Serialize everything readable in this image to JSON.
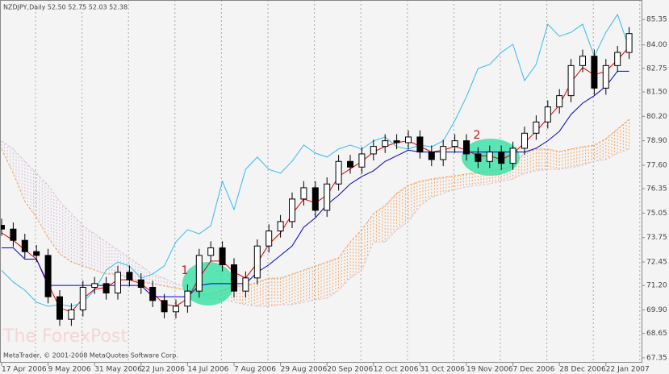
{
  "chart_data": {
    "type": "candlestick",
    "header": "NZDJPY,Daily  52.50 52.75 52.03 52.38",
    "footer": "MetaTrader, © 2001-2008 MetaQuotes Software Corp.",
    "watermark": "The ForexPost",
    "annotations": [
      "1",
      "2"
    ],
    "background": "#f4f4f4",
    "grid": true,
    "up_color": "#ffffff",
    "down_color": "#000000",
    "x": [
      0,
      4,
      8,
      12,
      16,
      20,
      24,
      28,
      32,
      36,
      40,
      44,
      48,
      52,
      56,
      60,
      64,
      68,
      72,
      76,
      80,
      84,
      88,
      92,
      96,
      100,
      104,
      108,
      112,
      116,
      120,
      124,
      128,
      132,
      136,
      140,
      144,
      148,
      152,
      156,
      160,
      164,
      168,
      172,
      176,
      180,
      184,
      188,
      192,
      196,
      200,
      204,
      208,
      212,
      216
    ],
    "open": [
      74.4,
      74.2,
      73.6,
      73.0,
      72.8,
      70.6,
      69.4,
      69.9,
      71.1,
      71.3,
      70.8,
      71.9,
      71.5,
      71.1,
      70.4,
      69.8,
      70.1,
      70.9,
      72.8,
      73.2,
      72.3,
      70.9,
      71.6,
      73.3,
      74.1,
      74.6,
      75.8,
      76.4,
      75.2,
      76.6,
      77.8,
      77.5,
      78.2,
      78.6,
      78.9,
      78.8,
      79.1,
      78.3,
      77.9,
      78.6,
      78.9,
      78.2,
      77.8,
      78.3,
      77.7,
      78.5,
      79.3,
      79.9,
      80.7,
      81.3,
      82.9,
      83.4,
      81.7,
      82.9,
      83.6
    ],
    "high": [
      74.75,
      74.55,
      73.95,
      73.35,
      73.15,
      70.95,
      70.25,
      71.45,
      71.65,
      71.65,
      72.25,
      72.25,
      71.85,
      71.45,
      70.75,
      70.45,
      71.25,
      73.15,
      73.55,
      73.55,
      72.65,
      71.95,
      73.65,
      74.45,
      74.95,
      76.15,
      76.75,
      76.75,
      76.95,
      78.15,
      78.15,
      78.55,
      78.95,
      79.25,
      79.25,
      79.45,
      79.45,
      78.65,
      78.95,
      79.25,
      79.25,
      78.55,
      78.65,
      78.65,
      78.85,
      79.65,
      80.25,
      81.05,
      81.65,
      83.25,
      83.75,
      83.75,
      83.25,
      83.95,
      84.95
    ],
    "low": [
      73.85,
      73.25,
      72.65,
      72.45,
      70.25,
      69.05,
      69.05,
      69.55,
      70.75,
      70.45,
      70.45,
      71.15,
      70.75,
      70.05,
      69.45,
      69.45,
      69.75,
      70.55,
      72.45,
      71.95,
      70.55,
      70.55,
      71.25,
      72.95,
      73.75,
      74.25,
      75.45,
      74.85,
      74.85,
      76.25,
      77.15,
      77.15,
      77.85,
      78.25,
      78.45,
      78.45,
      77.95,
      77.55,
      77.55,
      78.25,
      77.85,
      77.45,
      77.45,
      77.35,
      77.35,
      78.15,
      78.95,
      79.55,
      80.35,
      80.95,
      82.55,
      81.35,
      81.35,
      82.55,
      83.25
    ],
    "close": [
      74.2,
      73.6,
      73.0,
      72.8,
      70.6,
      69.4,
      69.9,
      71.1,
      71.3,
      70.8,
      71.9,
      71.5,
      71.1,
      70.4,
      69.8,
      70.1,
      70.9,
      72.8,
      73.2,
      72.3,
      70.9,
      71.6,
      73.3,
      74.1,
      74.6,
      75.8,
      76.4,
      75.2,
      76.6,
      77.8,
      77.5,
      78.2,
      78.6,
      78.9,
      78.8,
      79.1,
      78.3,
      77.9,
      78.6,
      78.9,
      78.2,
      77.8,
      78.3,
      77.7,
      78.5,
      79.3,
      79.9,
      80.7,
      81.3,
      82.9,
      83.4,
      81.7,
      82.9,
      83.6,
      84.6
    ],
    "series": [
      {
        "color": "#e00000",
        "values": [
          74.0,
          73.6,
          73.1,
          72.6,
          71.3,
          70.0,
          69.8,
          70.5,
          71.0,
          71.1,
          71.5,
          71.5,
          71.3,
          70.8,
          70.2,
          70.1,
          70.5,
          71.6,
          72.5,
          72.5,
          71.9,
          71.6,
          72.4,
          73.4,
          74.0,
          75.0,
          75.8,
          75.6,
          76.0,
          77.0,
          77.4,
          77.8,
          78.3,
          78.6,
          78.8,
          78.9,
          78.6,
          78.3,
          78.4,
          78.6,
          78.4,
          78.1,
          78.1,
          77.9,
          78.2,
          78.8,
          79.4,
          80.1,
          80.8,
          82.0,
          82.8,
          82.4,
          82.6,
          83.2,
          83.9
        ]
      },
      {
        "color": "#0000cc",
        "values": [
          73.2,
          73.2,
          72.6,
          72.6,
          71.2,
          71.2,
          71.2,
          71.2,
          71.2,
          71.2,
          71.2,
          71.2,
          71.2,
          70.6,
          70.6,
          70.6,
          70.6,
          71.2,
          71.3,
          71.3,
          71.3,
          71.3,
          71.9,
          72.3,
          72.8,
          73.3,
          74.3,
          74.8,
          75.5,
          76.0,
          76.6,
          77.0,
          77.3,
          77.8,
          78.1,
          78.4,
          78.3,
          78.3,
          78.3,
          78.3,
          78.3,
          78.3,
          78.3,
          78.3,
          78.3,
          78.3,
          78.5,
          78.9,
          79.4,
          80.3,
          80.9,
          81.3,
          81.8,
          82.6,
          82.6
        ]
      },
      {
        "color": "#33bbee",
        "values": [
          72.0,
          71.38,
          70.95,
          70.31,
          70.09,
          70.18,
          70.09,
          70.31,
          70.95,
          72.02,
          72.45,
          72.24,
          71.59,
          71.81,
          72.24,
          73.52,
          74.17,
          73.95,
          74.38,
          76.74,
          75.24,
          77.38,
          78.03,
          77.38,
          77.17,
          77.81,
          78.67,
          78.24,
          78.03,
          78.46,
          78.67,
          78.46,
          78.89,
          79.1,
          78.58,
          78.46,
          78.67,
          78.58,
          78.89,
          79.96,
          81.24,
          82.74,
          82.96,
          83.6,
          84.03,
          82.1,
          82.96,
          85.1,
          84.46,
          84.67,
          85.1,
          83.39,
          84.67,
          85.62,
          83.82
        ]
      }
    ],
    "cloud": {
      "a_color": "#f4a460",
      "b_color": "#d8bfd8",
      "a_values": [
        78.46,
        77.17,
        75.67,
        74.81,
        73.74,
        72.88,
        72.45,
        72.24,
        72.02,
        71.81,
        71.81,
        71.59,
        71.38,
        71.29,
        71.17,
        71.04,
        70.95,
        70.74,
        70.74,
        70.95,
        71.17,
        71.17,
        71.38,
        71.59,
        71.59,
        71.81,
        72.02,
        72.24,
        72.45,
        72.67,
        73.52,
        74.17,
        75.03,
        75.45,
        76.1,
        76.53,
        76.74,
        76.87,
        76.95,
        77.04,
        77.13,
        77.21,
        77.3,
        77.38,
        77.6,
        78.24,
        78.46,
        78.46,
        78.33,
        78.46,
        78.58,
        78.67,
        79.01,
        79.53,
        80.04
      ],
      "b_values": [
        78.89,
        78.46,
        77.81,
        77.17,
        76.53,
        75.67,
        75.03,
        74.38,
        73.95,
        73.52,
        73.09,
        72.67,
        72.24,
        71.81,
        71.59,
        71.29,
        71.12,
        70.74,
        70.52,
        70.44,
        70.31,
        70.18,
        70.09,
        70.09,
        70.18,
        70.18,
        70.31,
        70.44,
        70.52,
        70.95,
        71.59,
        72.02,
        73.52,
        73.52,
        74.17,
        74.6,
        75.45,
        75.88,
        76.1,
        76.31,
        76.44,
        76.53,
        76.61,
        76.74,
        76.87,
        77.17,
        77.3,
        77.38,
        77.38,
        77.47,
        77.6,
        77.81,
        77.9,
        78.24,
        78.46
      ]
    },
    "xlim": [
      0,
      220
    ],
    "xticks": [
      {
        "value": 0,
        "label": "17 Apr 2006"
      },
      {
        "value": 16,
        "label": "9 May 2006"
      },
      {
        "value": 32,
        "label": "31 May 2006"
      },
      {
        "value": 48,
        "label": "22 Jun 2006"
      },
      {
        "value": 64,
        "label": "14 Jul 2006"
      },
      {
        "value": 80,
        "label": "7 Aug 2006"
      },
      {
        "value": 96,
        "label": "29 Aug 2006"
      },
      {
        "value": 112,
        "label": "20 Sep 2006"
      },
      {
        "value": 128,
        "label": "12 Oct 2006"
      },
      {
        "value": 144,
        "label": "31 Oct 2006"
      },
      {
        "value": 160,
        "label": "19 Nov 2006"
      },
      {
        "value": 176,
        "label": "7 Dec 2006"
      },
      {
        "value": 192,
        "label": "28 Dec 2006"
      },
      {
        "value": 208,
        "label": "22 Jan 2007"
      }
    ],
    "ylim": [
      67.09,
      85.96
    ],
    "yticks": [
      85.35,
      {
        "value": 84,
        "label": "84.00"
      },
      82.75,
      {
        "value": 81.5,
        "label": "81.50"
      },
      {
        "value": 80.2,
        "label": "80.20"
      },
      {
        "value": 78.9,
        "label": "78.90"
      },
      {
        "value": 77.6,
        "label": "77.60"
      },
      76.35,
      75.05,
      73.75,
      72.45,
      {
        "value": 71.2,
        "label": "71.20"
      },
      {
        "value": 69.9,
        "label": "69.90"
      },
      68.65,
      67.35
    ]
  }
}
